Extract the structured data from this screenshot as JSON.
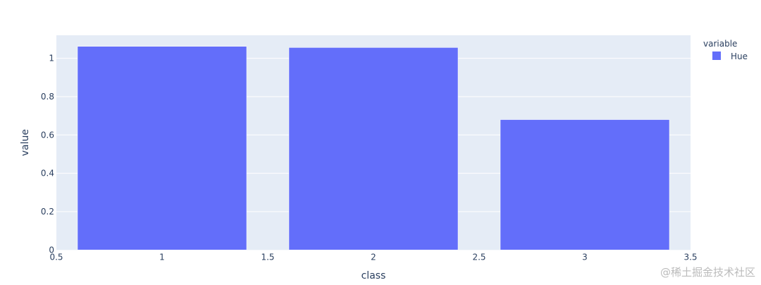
{
  "chart_data": {
    "type": "bar",
    "title": "",
    "xlabel": "class",
    "ylabel": "value",
    "x": [
      1,
      2,
      3
    ],
    "series": [
      {
        "name": "Hue",
        "values": [
          1.062,
          1.056,
          0.68
        ],
        "color": "#636efa"
      }
    ],
    "xlim": [
      0.5,
      3.5
    ],
    "ylim": [
      0,
      1.12
    ],
    "xticks": [
      0.5,
      1,
      1.5,
      2,
      2.5,
      3,
      3.5
    ],
    "xtick_labels": [
      "0.5",
      "1",
      "1.5",
      "2",
      "2.5",
      "3",
      "3.5"
    ],
    "yticks": [
      0,
      0.2,
      0.4,
      0.6,
      0.8,
      1
    ],
    "ytick_labels": [
      "0",
      "0.2",
      "0.4",
      "0.6",
      "0.8",
      "1"
    ],
    "grid": true,
    "legend_title": "variable",
    "legend_placement": "top-right",
    "plot_bgcolor": "#e5ecf6"
  },
  "watermark": "@稀土掘金技术社区"
}
